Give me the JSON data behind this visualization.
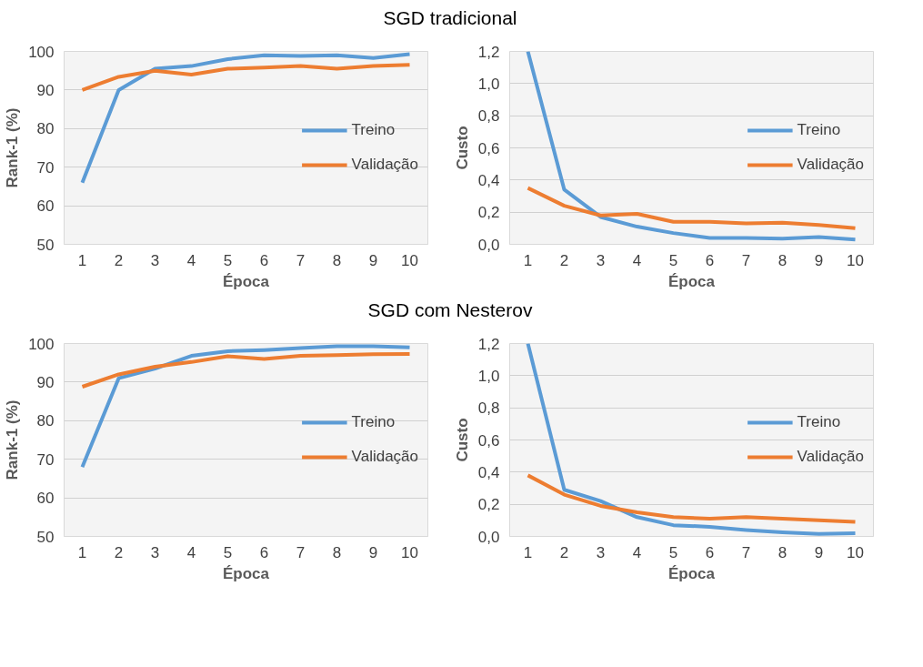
{
  "chart_data": [
    {
      "type": "line",
      "title": "SGD tradicional",
      "xlabel": "Época",
      "ylabel": "Rank-1 (%)",
      "categories": [
        "1",
        "2",
        "3",
        "4",
        "5",
        "6",
        "7",
        "8",
        "9",
        "10"
      ],
      "series": [
        {
          "name": "Treino",
          "color": "#5b9bd5",
          "values": [
            66,
            90,
            95.5,
            96.2,
            98,
            99,
            98.8,
            99,
            98.3,
            99.3
          ]
        },
        {
          "name": "Validação",
          "color": "#ed7d31",
          "values": [
            90,
            93.4,
            95,
            94,
            95.5,
            95.8,
            96.2,
            95.5,
            96.2,
            96.5
          ]
        }
      ],
      "ylim": [
        50,
        100
      ],
      "yticks": [
        50,
        60,
        70,
        80,
        90,
        100
      ],
      "grid": "y",
      "legend": "right",
      "marker": "none",
      "line_style": "solid"
    },
    {
      "type": "line",
      "xlabel": "Época",
      "ylabel": "Custo",
      "categories": [
        "1",
        "2",
        "3",
        "4",
        "5",
        "6",
        "7",
        "8",
        "9",
        "10"
      ],
      "series": [
        {
          "name": "Treino",
          "color": "#5b9bd5",
          "values": [
            1.2,
            0.34,
            0.17,
            0.11,
            0.07,
            0.04,
            0.04,
            0.035,
            0.045,
            0.03
          ]
        },
        {
          "name": "Validação",
          "color": "#ed7d31",
          "values": [
            0.35,
            0.24,
            0.18,
            0.19,
            0.14,
            0.14,
            0.13,
            0.135,
            0.12,
            0.1
          ]
        }
      ],
      "ylim": [
        0,
        1.2
      ],
      "yticks": [
        {
          "value": 0,
          "label": "0,0"
        },
        {
          "value": 0.2,
          "label": "0,2"
        },
        {
          "value": 0.4,
          "label": "0,4"
        },
        {
          "value": 0.6,
          "label": "0,6"
        },
        {
          "value": 0.8,
          "label": "0,8"
        },
        {
          "value": 1,
          "label": "1,0"
        },
        {
          "value": 1.2,
          "label": "1,2"
        }
      ],
      "grid": "y",
      "legend": "right",
      "marker": "none",
      "line_style": "solid"
    },
    {
      "type": "line",
      "title": "SGD com Nesterov",
      "xlabel": "Época",
      "ylabel": "Rank-1 (%)",
      "categories": [
        "1",
        "2",
        "3",
        "4",
        "5",
        "6",
        "7",
        "8",
        "9",
        "10"
      ],
      "series": [
        {
          "name": "Treino",
          "color": "#5b9bd5",
          "values": [
            68,
            91,
            93.5,
            96.8,
            98,
            98.3,
            98.8,
            99.3,
            99.3,
            99
          ]
        },
        {
          "name": "Validação",
          "color": "#ed7d31",
          "values": [
            88.8,
            92,
            94,
            95.2,
            96.7,
            96,
            96.8,
            97,
            97.2,
            97.3
          ]
        }
      ],
      "ylim": [
        50,
        100
      ],
      "yticks": [
        50,
        60,
        70,
        80,
        90,
        100
      ],
      "grid": "y",
      "legend": "right",
      "marker": "none",
      "line_style": "solid"
    },
    {
      "type": "line",
      "xlabel": "Época",
      "ylabel": "Custo",
      "categories": [
        "1",
        "2",
        "3",
        "4",
        "5",
        "6",
        "7",
        "8",
        "9",
        "10"
      ],
      "series": [
        {
          "name": "Treino",
          "color": "#5b9bd5",
          "values": [
            1.2,
            0.29,
            0.22,
            0.12,
            0.07,
            0.06,
            0.04,
            0.025,
            0.015,
            0.02
          ]
        },
        {
          "name": "Validação",
          "color": "#ed7d31",
          "values": [
            0.38,
            0.26,
            0.19,
            0.15,
            0.12,
            0.11,
            0.12,
            0.11,
            0.1,
            0.09
          ]
        }
      ],
      "ylim": [
        0,
        1.2
      ],
      "yticks": [
        {
          "value": 0,
          "label": "0,0"
        },
        {
          "value": 0.2,
          "label": "0,2"
        },
        {
          "value": 0.4,
          "label": "0,4"
        },
        {
          "value": 0.6,
          "label": "0,6"
        },
        {
          "value": 0.8,
          "label": "0,8"
        },
        {
          "value": 1,
          "label": "1,0"
        },
        {
          "value": 1.2,
          "label": "1,2"
        }
      ],
      "grid": "y",
      "legend": "right",
      "marker": "none",
      "line_style": "solid"
    }
  ]
}
